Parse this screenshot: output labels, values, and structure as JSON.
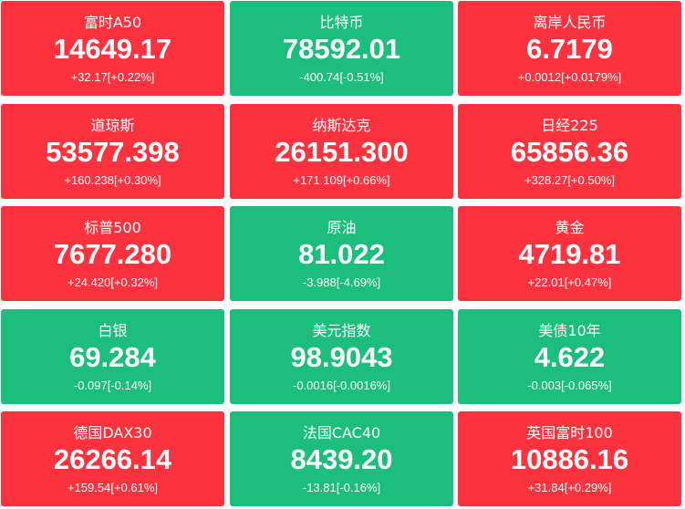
{
  "tiles": [
    {
      "name": "富时A50",
      "price": "14649.17",
      "change": "+32.17[+0.22%]",
      "color": "#fc323f"
    },
    {
      "name": "比特币",
      "price": "78592.01",
      "change": "-400.74[-0.51%]",
      "color": "#1bbf7b"
    },
    {
      "name": "离岸人民币",
      "price": "6.7179",
      "change": "+0.0012[+0.0179%]",
      "color": "#fc323f"
    },
    {
      "name": "道琼斯",
      "price": "53577.398",
      "change": "+160.238[+0.30%]",
      "color": "#fc323f"
    },
    {
      "name": "纳斯达克",
      "price": "26151.300",
      "change": "+171.109[+0.66%]",
      "color": "#fc323f"
    },
    {
      "name": "日经225",
      "price": "65856.36",
      "change": "+328.27[+0.50%]",
      "color": "#fc323f"
    },
    {
      "name": "标普500",
      "price": "7677.280",
      "change": "+24.420[+0.32%]",
      "color": "#fc323f"
    },
    {
      "name": "原油",
      "price": "81.022",
      "change": "-3.988[-4.69%]",
      "color": "#1bbf7b"
    },
    {
      "name": "黄金",
      "price": "4719.81",
      "change": "+22.01[+0.47%]",
      "color": "#fc323f"
    },
    {
      "name": "白银",
      "price": "69.284",
      "change": "-0.097[-0.14%]",
      "color": "#1bbf7b"
    },
    {
      "name": "美元指数",
      "price": "98.9043",
      "change": "-0.0016[-0.0016%]",
      "color": "#1bbf7b"
    },
    {
      "name": "美债10年",
      "price": "4.622",
      "change": "-0.003[-0.065%]",
      "color": "#1bbf7b"
    },
    {
      "name": "德国DAX30",
      "price": "26266.14",
      "change": "+159.54[+0.61%]",
      "color": "#fc323f"
    },
    {
      "name": "法国CAC40",
      "price": "8439.20",
      "change": "-13.81[-0.16%]",
      "color": "#1bbf7b"
    },
    {
      "name": "英国富时100",
      "price": "10886.16",
      "change": "+31.84[+0.29%]",
      "color": "#fc323f"
    }
  ]
}
